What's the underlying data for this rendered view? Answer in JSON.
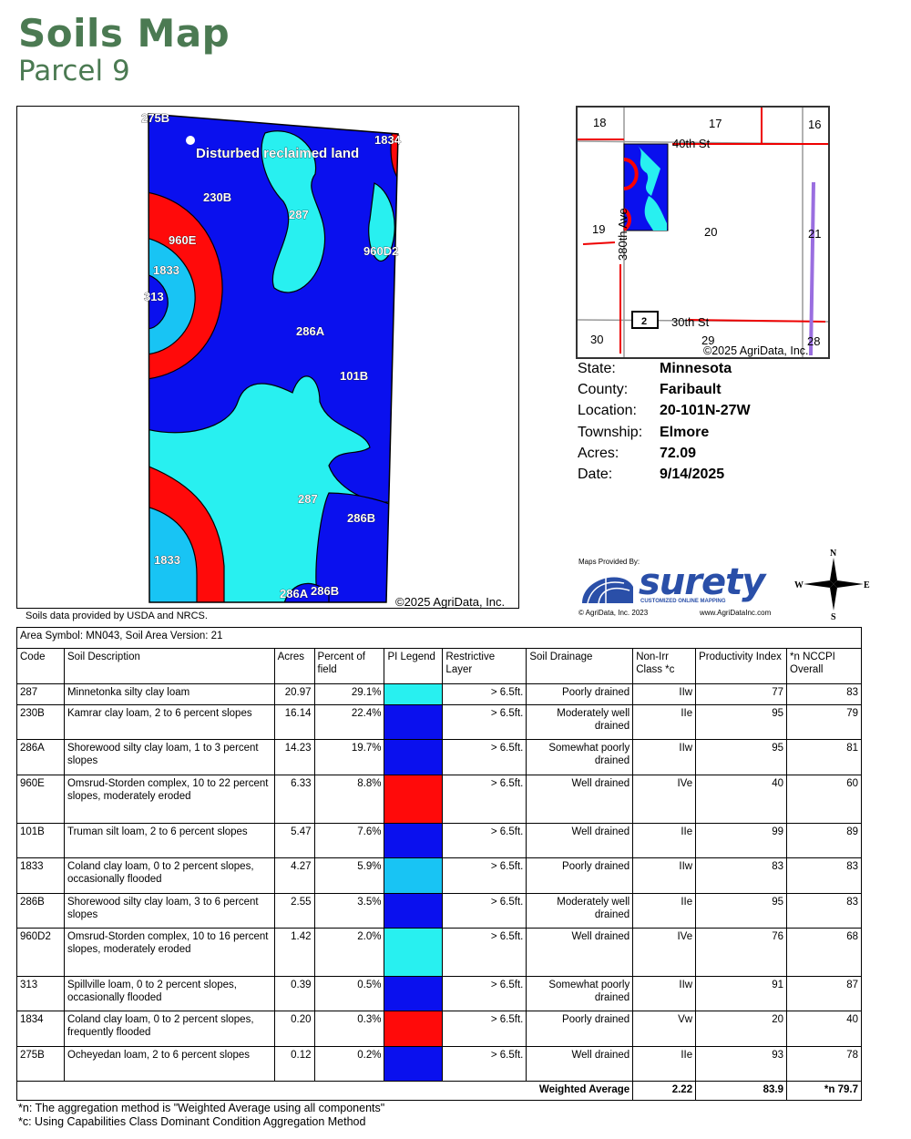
{
  "title": "Soils Map",
  "subtitle": "Parcel 9",
  "main_map": {
    "copyright": "©2025 AgriData, Inc.",
    "labels": [
      "275B",
      "Disturbed reclaimed land",
      "1834",
      "230B",
      "287",
      "960E",
      "960D2",
      "1833",
      "313",
      "286A",
      "101B",
      "287",
      "286B",
      "1833",
      "286A",
      "286B"
    ],
    "colors": {
      "cyan": "#28f0f0",
      "blue": "#0a10ee",
      "red": "#ff0a0a",
      "light_blue": "#18c4f4"
    }
  },
  "location_map": {
    "sections": [
      "18",
      "17",
      "16",
      "19",
      "20",
      "21",
      "30",
      "29",
      "28"
    ],
    "roads": [
      "40th St",
      "380th Ave",
      "30th St"
    ],
    "route_shield": "2",
    "copyright": "©2025 AgriData, Inc."
  },
  "info": [
    {
      "label": "State:",
      "value": "Minnesota"
    },
    {
      "label": "County:",
      "value": "Faribault"
    },
    {
      "label": "Location:",
      "value": "20-101N-27W"
    },
    {
      "label": "Township:",
      "value": "Elmore"
    },
    {
      "label": "Acres:",
      "value": "72.09"
    },
    {
      "label": "Date:",
      "value": "9/14/2025"
    }
  ],
  "logo": {
    "provided_by": "Maps Provided By:",
    "brand": "surety",
    "tagline": "CUSTOMIZED ONLINE MAPPING",
    "copyright": "© AgriData, Inc. 2023",
    "url": "www.AgriDataInc.com"
  },
  "compass": {
    "n": "N",
    "s": "S",
    "e": "E",
    "w": "W"
  },
  "source_note": "Soils data provided by USDA and NRCS.",
  "table": {
    "area_symbol": "Area Symbol: MN043, Soil Area Version: 21",
    "headers": [
      "Code",
      "Soil Description",
      "Acres",
      "Percent of field",
      "PI Legend",
      "Restrictive Layer",
      "Soil Drainage",
      "Non-Irr Class *c",
      "Productivity Index",
      "*n NCCPI Overall"
    ],
    "rows": [
      {
        "code": "287",
        "desc": "Minnetonka silty clay loam",
        "acres": "20.97",
        "pct": "29.1%",
        "color": "#28f0f0",
        "layer": "> 6.5ft.",
        "drainage": "Poorly drained",
        "class": "IIw",
        "pi": "77",
        "nccpi": "83"
      },
      {
        "code": "230B",
        "desc": "Kamrar clay loam, 2 to 6 percent slopes",
        "acres": "16.14",
        "pct": "22.4%",
        "color": "#0a10ee",
        "layer": "> 6.5ft.",
        "drainage": "Moderately well drained",
        "class": "IIe",
        "pi": "95",
        "nccpi": "79"
      },
      {
        "code": "286A",
        "desc": "Shorewood silty clay loam, 1 to 3 percent slopes",
        "acres": "14.23",
        "pct": "19.7%",
        "color": "#0a10ee",
        "layer": "> 6.5ft.",
        "drainage": "Somewhat poorly drained",
        "class": "IIw",
        "pi": "95",
        "nccpi": "81"
      },
      {
        "code": "960E",
        "desc": "Omsrud-Storden complex, 10 to 22 percent slopes, moderately eroded",
        "acres": "6.33",
        "pct": "8.8%",
        "color": "#ff0a0a",
        "layer": "> 6.5ft.",
        "drainage": "Well drained",
        "class": "IVe",
        "pi": "40",
        "nccpi": "60"
      },
      {
        "code": "101B",
        "desc": "Truman silt loam, 2 to 6 percent slopes",
        "acres": "5.47",
        "pct": "7.6%",
        "color": "#0a10ee",
        "layer": "> 6.5ft.",
        "drainage": "Well drained",
        "class": "IIe",
        "pi": "99",
        "nccpi": "89"
      },
      {
        "code": "1833",
        "desc": "Coland clay loam, 0 to 2 percent slopes, occasionally flooded",
        "acres": "4.27",
        "pct": "5.9%",
        "color": "#18c4f4",
        "layer": "> 6.5ft.",
        "drainage": "Poorly drained",
        "class": "IIw",
        "pi": "83",
        "nccpi": "83"
      },
      {
        "code": "286B",
        "desc": "Shorewood silty clay loam, 3 to 6 percent slopes",
        "acres": "2.55",
        "pct": "3.5%",
        "color": "#0a10ee",
        "layer": "> 6.5ft.",
        "drainage": "Moderately well drained",
        "class": "IIe",
        "pi": "95",
        "nccpi": "83"
      },
      {
        "code": "960D2",
        "desc": "Omsrud-Storden complex, 10 to 16 percent slopes, moderately eroded",
        "acres": "1.42",
        "pct": "2.0%",
        "color": "#28f0f0",
        "layer": "> 6.5ft.",
        "drainage": "Well drained",
        "class": "IVe",
        "pi": "76",
        "nccpi": "68"
      },
      {
        "code": "313",
        "desc": "Spillville loam, 0 to 2 percent slopes, occasionally flooded",
        "acres": "0.39",
        "pct": "0.5%",
        "color": "#0a10ee",
        "layer": "> 6.5ft.",
        "drainage": "Somewhat poorly drained",
        "class": "IIw",
        "pi": "91",
        "nccpi": "87"
      },
      {
        "code": "1834",
        "desc": "Coland clay loam, 0 to 2 percent slopes, frequently flooded",
        "acres": "0.20",
        "pct": "0.3%",
        "color": "#ff0a0a",
        "layer": "> 6.5ft.",
        "drainage": "Poorly drained",
        "class": "Vw",
        "pi": "20",
        "nccpi": "40"
      },
      {
        "code": "275B",
        "desc": "Ocheyedan loam, 2 to 6 percent slopes",
        "acres": "0.12",
        "pct": "0.2%",
        "color": "#0a10ee",
        "layer": "> 6.5ft.",
        "drainage": "Well drained",
        "class": "IIe",
        "pi": "93",
        "nccpi": "78"
      }
    ],
    "weighted": {
      "label": "Weighted Average",
      "class": "2.22",
      "pi": "83.9",
      "nccpi": "*n 79.7"
    }
  },
  "footnotes": [
    "*n: The aggregation method is \"Weighted Average using all components\"",
    "*c: Using Capabilities Class Dominant Condition Aggregation Method"
  ]
}
